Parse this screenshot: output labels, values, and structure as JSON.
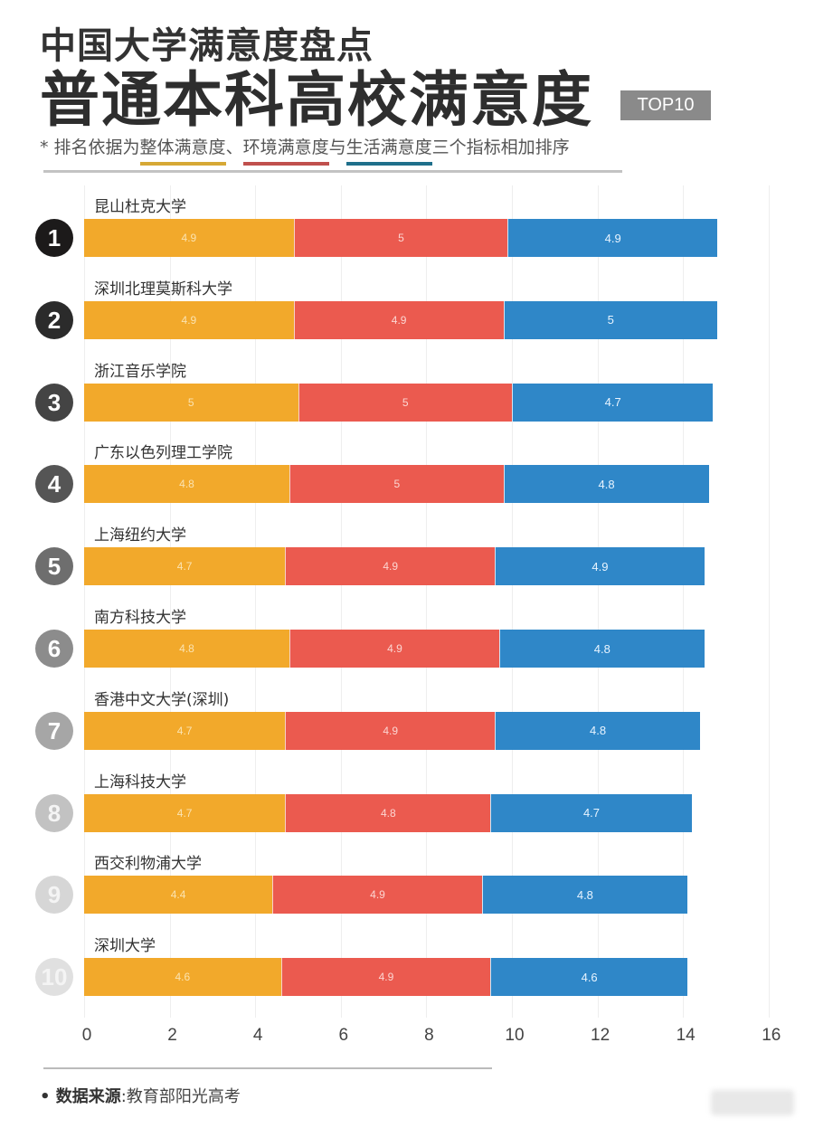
{
  "header": {
    "title_small": "中国大学满意度盘点",
    "title_large": "普通本科高校满意度",
    "badge": "TOP10",
    "note_prefix": "* 排名依据为",
    "note_k1": "整体满意度",
    "note_sep1": "、",
    "note_k2": "环境满意度",
    "note_sep2": "与",
    "note_k3": "生活满意度",
    "note_suffix": "三个指标相加排序"
  },
  "footer": {
    "source_label": "• 数据来源",
    "source_value": ":教育部阳光高考"
  },
  "colors": {
    "overall": "#f2a92b",
    "environment": "#eb5a4f",
    "life": "#2f87c8",
    "rank_colors": [
      "#1c1a1a",
      "#2b2b2b",
      "#444444",
      "#555555",
      "#6e6e6e",
      "#8c8c8c",
      "#a6a6a6",
      "#c2c2c2",
      "#d6d6d6",
      "#e0e0e0"
    ]
  },
  "chart_data": {
    "type": "bar",
    "orientation": "horizontal",
    "stacked": true,
    "title": "普通本科高校满意度 TOP10",
    "subtitle": "中国大学满意度盘点",
    "xlabel": "",
    "ylabel": "",
    "xlim": [
      0,
      16
    ],
    "x_ticks": [
      "0",
      "2",
      "4",
      "6",
      "8",
      "10",
      "12",
      "14",
      "16"
    ],
    "grid": true,
    "categories": [
      "昆山杜克大学",
      "深圳北理莫斯科大学",
      "浙江音乐学院",
      "广东以色列理工学院",
      "上海纽约大学",
      "南方科技大学",
      "香港中文大学(深圳)",
      "上海科技大学",
      "西交利物浦大学",
      "深圳大学"
    ],
    "ranks": [
      "1",
      "2",
      "3",
      "4",
      "5",
      "6",
      "7",
      "8",
      "9",
      "10"
    ],
    "series": [
      {
        "name": "整体满意度",
        "values": [
          4.9,
          4.9,
          5,
          4.8,
          4.7,
          4.8,
          4.7,
          4.7,
          4.4,
          4.6
        ]
      },
      {
        "name": "环境满意度",
        "values": [
          5,
          4.9,
          5,
          5,
          4.9,
          4.9,
          4.9,
          4.8,
          4.9,
          4.9
        ]
      },
      {
        "name": "生活满意度",
        "values": [
          4.9,
          5,
          4.7,
          4.8,
          4.9,
          4.8,
          4.8,
          4.7,
          4.8,
          4.6
        ]
      }
    ],
    "source": "教育部阳光高考"
  }
}
